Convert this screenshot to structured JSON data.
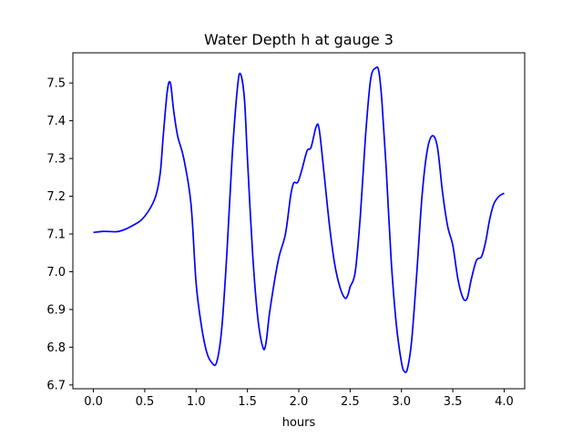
{
  "chart_data": {
    "type": "line",
    "title": "Water Depth h at gauge 3",
    "xlabel": "hours",
    "ylabel": "",
    "xlim": [
      -0.2,
      4.2
    ],
    "ylim": [
      6.69,
      7.58
    ],
    "xticks": [
      0.0,
      0.5,
      1.0,
      1.5,
      2.0,
      2.5,
      3.0,
      3.5,
      4.0
    ],
    "xtick_labels": [
      "0.0",
      "0.5",
      "1.0",
      "1.5",
      "2.0",
      "2.5",
      "3.0",
      "3.5",
      "4.0"
    ],
    "yticks": [
      6.7,
      6.8,
      6.9,
      7.0,
      7.1,
      7.2,
      7.3,
      7.4,
      7.5
    ],
    "ytick_labels": [
      "6.7",
      "6.8",
      "6.9",
      "7.0",
      "7.1",
      "7.2",
      "7.3",
      "7.4",
      "7.5"
    ],
    "grid": false,
    "color": "#0000ff",
    "series": [
      {
        "x": [
          0.0,
          0.1,
          0.25,
          0.4,
          0.5,
          0.6,
          0.65,
          0.68,
          0.72,
          0.75,
          0.78,
          0.82,
          0.88,
          0.95,
          1.0,
          1.05,
          1.1,
          1.15,
          1.2,
          1.25,
          1.3,
          1.35,
          1.4,
          1.43,
          1.47,
          1.5,
          1.55,
          1.6,
          1.65,
          1.68,
          1.72,
          1.8,
          1.87,
          1.92,
          1.95,
          1.99,
          2.03,
          2.08,
          2.12,
          2.17,
          2.2,
          2.25,
          2.3,
          2.35,
          2.4,
          2.45,
          2.48,
          2.5,
          2.55,
          2.6,
          2.65,
          2.7,
          2.75,
          2.78,
          2.81,
          2.85,
          2.9,
          2.95,
          3.0,
          3.03,
          3.06,
          3.1,
          3.15,
          3.2,
          3.25,
          3.3,
          3.35,
          3.4,
          3.45,
          3.5,
          3.55,
          3.6,
          3.64,
          3.68,
          3.73,
          3.78,
          3.82,
          3.86,
          3.9,
          3.95,
          4.0
        ],
        "y": [
          7.104,
          7.107,
          7.107,
          7.125,
          7.147,
          7.195,
          7.26,
          7.36,
          7.48,
          7.5,
          7.43,
          7.36,
          7.3,
          7.18,
          6.97,
          6.86,
          6.79,
          6.76,
          6.76,
          6.85,
          7.05,
          7.3,
          7.48,
          7.525,
          7.46,
          7.3,
          7.05,
          6.88,
          6.8,
          6.81,
          6.9,
          7.03,
          7.1,
          7.2,
          7.235,
          7.237,
          7.27,
          7.32,
          7.33,
          7.385,
          7.375,
          7.25,
          7.12,
          7.02,
          6.96,
          6.93,
          6.94,
          6.96,
          7.0,
          7.15,
          7.36,
          7.51,
          7.54,
          7.53,
          7.45,
          7.28,
          7.03,
          6.86,
          6.76,
          6.735,
          6.745,
          6.82,
          7.0,
          7.2,
          7.32,
          7.36,
          7.33,
          7.21,
          7.12,
          7.07,
          6.98,
          6.93,
          6.93,
          6.98,
          7.03,
          7.04,
          7.08,
          7.14,
          7.18,
          7.2,
          7.208
        ]
      }
    ]
  }
}
